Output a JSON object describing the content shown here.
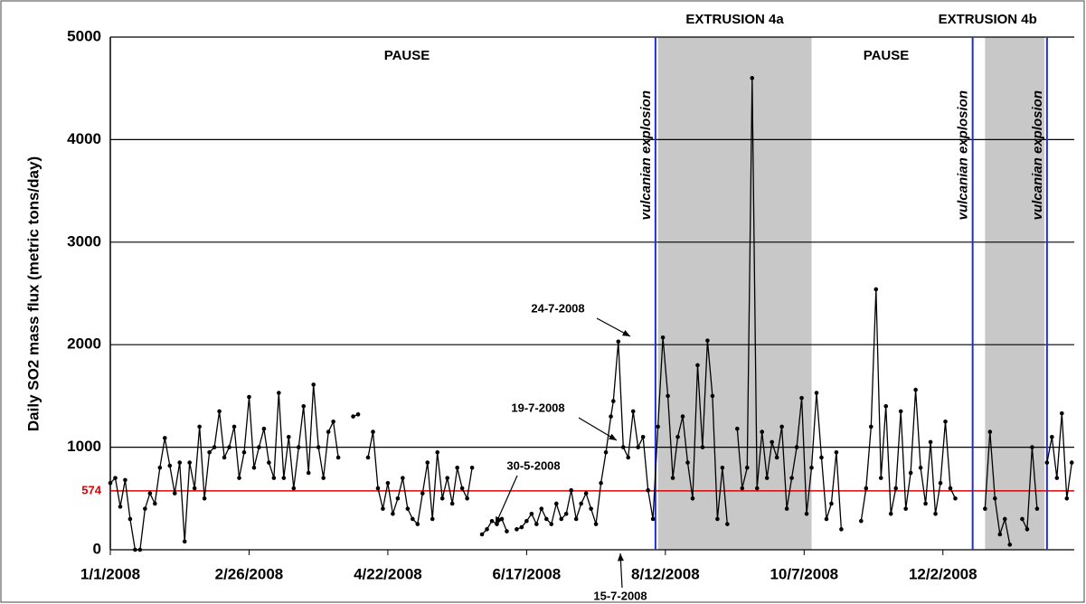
{
  "chart_data": {
    "type": "line",
    "y_label": "Daily SO2 mass flux (metric tons/day)",
    "xlim": [
      "2008-01-01",
      "2009-01-24"
    ],
    "xticks": [
      {
        "value": "2008-01-01",
        "label": "1/1/2008"
      },
      {
        "value": "2008-02-26",
        "label": "2/26/2008"
      },
      {
        "value": "2008-04-22",
        "label": "4/22/2008"
      },
      {
        "value": "2008-06-17",
        "label": "6/17/2008"
      },
      {
        "value": "2008-08-12",
        "label": "8/12/2008"
      },
      {
        "value": "2008-10-07",
        "label": "10/7/2008"
      },
      {
        "value": "2008-12-02",
        "label": "12/2/2008"
      }
    ],
    "ylim": [
      0,
      5000
    ],
    "yticks": [
      0,
      1000,
      2000,
      3000,
      4000,
      5000
    ],
    "grid": true,
    "reference": {
      "value": 574,
      "color": "#e00000"
    },
    "shaded_regions": [
      {
        "label": "EXTRUSION 4a",
        "start": "2008-08-09",
        "end": "2008-10-10",
        "color": "#c8c8c8"
      },
      {
        "label": "EXTRUSION 4b",
        "start": "2008-12-19",
        "end": "2009-01-12",
        "color": "#c8c8c8"
      }
    ],
    "events": [
      {
        "label": "vulcanian explosion",
        "date": "2008-08-08"
      },
      {
        "label": "vulcanian explosion",
        "date": "2008-12-14"
      },
      {
        "label": "vulcanian explosion",
        "date": "2009-01-13"
      }
    ],
    "event_color": "#1f2fd0",
    "pause_labels": [
      "PAUSE",
      "PAUSE"
    ],
    "callouts": [
      "24-7-2008",
      "19-7-2008",
      "30-5-2008",
      "15-7-2008"
    ],
    "series": [
      {
        "name": "SO2",
        "color": "#000000",
        "x": [
          "2008-01-01",
          "2008-01-03",
          "2008-01-05",
          "2008-01-07",
          "2008-01-09",
          "2008-01-11",
          "2008-01-13",
          "2008-01-15",
          "2008-01-17",
          "2008-01-19",
          "2008-01-21",
          "2008-01-23",
          "2008-01-25",
          "2008-01-27",
          "2008-01-29",
          "2008-01-31",
          "2008-02-02",
          "2008-02-04",
          "2008-02-06",
          "2008-02-08",
          "2008-02-10",
          "2008-02-12",
          "2008-02-14",
          "2008-02-16",
          "2008-02-18",
          "2008-02-20",
          "2008-02-22",
          "2008-02-24",
          "2008-02-26",
          "2008-02-28",
          "2008-03-01",
          "2008-03-03",
          "2008-03-05",
          "2008-03-07",
          "2008-03-09",
          "2008-03-11",
          "2008-03-13",
          "2008-03-15",
          "2008-03-17",
          "2008-03-19",
          "2008-03-21",
          "2008-03-23",
          "2008-03-25",
          "2008-03-27",
          "2008-03-29",
          "2008-03-31",
          "2008-04-02",
          "2008-04-05",
          "2008-04-08",
          "2008-04-10",
          "2008-04-12",
          "2008-04-14",
          "2008-04-16",
          "2008-04-18",
          "2008-04-20",
          "2008-04-22",
          "2008-04-24",
          "2008-04-26",
          "2008-04-28",
          "2008-04-30",
          "2008-05-02",
          "2008-05-04",
          "2008-05-06",
          "2008-05-08",
          "2008-05-10",
          "2008-05-12",
          "2008-05-14",
          "2008-05-16",
          "2008-05-18",
          "2008-05-20",
          "2008-05-22",
          "2008-05-24",
          "2008-05-26",
          "2008-05-28",
          "2008-05-30",
          "2008-06-01",
          "2008-06-03",
          "2008-06-05",
          "2008-06-07",
          "2008-06-09",
          "2008-06-11",
          "2008-06-13",
          "2008-06-15",
          "2008-06-17",
          "2008-06-19",
          "2008-06-21",
          "2008-06-23",
          "2008-06-25",
          "2008-06-27",
          "2008-06-29",
          "2008-07-01",
          "2008-07-03",
          "2008-07-05",
          "2008-07-07",
          "2008-07-09",
          "2008-07-11",
          "2008-07-13",
          "2008-07-15",
          "2008-07-17",
          "2008-07-19",
          "2008-07-21",
          "2008-07-22",
          "2008-07-24",
          "2008-07-26",
          "2008-07-28",
          "2008-07-30",
          "2008-08-01",
          "2008-08-03",
          "2008-08-05",
          "2008-08-07",
          "2008-08-09",
          "2008-08-11",
          "2008-08-13",
          "2008-08-15",
          "2008-08-17",
          "2008-08-19",
          "2008-08-21",
          "2008-08-23",
          "2008-08-25",
          "2008-08-27",
          "2008-08-29",
          "2008-08-31",
          "2008-09-02",
          "2008-09-04",
          "2008-09-06",
          "2008-09-08",
          "2008-09-10",
          "2008-09-12",
          "2008-09-14",
          "2008-09-16",
          "2008-09-18",
          "2008-09-20",
          "2008-09-22",
          "2008-09-24",
          "2008-09-26",
          "2008-09-28",
          "2008-09-30",
          "2008-10-02",
          "2008-10-04",
          "2008-10-06",
          "2008-10-08",
          "2008-10-10",
          "2008-10-12",
          "2008-10-14",
          "2008-10-16",
          "2008-10-18",
          "2008-10-20",
          "2008-10-22",
          "2008-10-25",
          "2008-10-30",
          "2008-11-01",
          "2008-11-03",
          "2008-11-05",
          "2008-11-07",
          "2008-11-09",
          "2008-11-11",
          "2008-11-13",
          "2008-11-15",
          "2008-11-17",
          "2008-11-19",
          "2008-11-21",
          "2008-11-23",
          "2008-11-25",
          "2008-11-27",
          "2008-11-29",
          "2008-12-01",
          "2008-12-03",
          "2008-12-05",
          "2008-12-07",
          "2008-12-12",
          "2008-12-19",
          "2008-12-21",
          "2008-12-23",
          "2008-12-25",
          "2008-12-27",
          "2008-12-29",
          "2008-12-31",
          "2009-01-03",
          "2009-01-05",
          "2009-01-07",
          "2009-01-09",
          "2009-01-11",
          "2009-01-13",
          "2009-01-15",
          "2009-01-17",
          "2009-01-19",
          "2009-01-21",
          "2009-01-23"
        ],
        "values": [
          650,
          700,
          420,
          680,
          300,
          0,
          0,
          400,
          550,
          450,
          800,
          1090,
          820,
          550,
          850,
          80,
          850,
          600,
          1200,
          500,
          950,
          1000,
          1350,
          900,
          1000,
          1200,
          700,
          950,
          1490,
          800,
          1000,
          1180,
          850,
          700,
          1530,
          700,
          1100,
          600,
          1000,
          1400,
          750,
          1610,
          1000,
          700,
          1150,
          1250,
          900,
          null,
          1300,
          1320,
          null,
          900,
          1150,
          600,
          400,
          650,
          350,
          500,
          700,
          400,
          300,
          250,
          550,
          850,
          300,
          950,
          500,
          700,
          450,
          800,
          600,
          500,
          800,
          null,
          150,
          200,
          280,
          250,
          300,
          180,
          null,
          200,
          220,
          280,
          350,
          250,
          400,
          300,
          250,
          450,
          300,
          350,
          580,
          300,
          450,
          550,
          400,
          250,
          650,
          950,
          1300,
          1450,
          2030,
          1000,
          900,
          1350,
          1000,
          1100,
          580,
          300,
          1200,
          2070,
          1500,
          700,
          1100,
          1300,
          850,
          500,
          1800,
          1000,
          2040,
          1500,
          300,
          800,
          250,
          null,
          1180,
          600,
          800,
          4600,
          600,
          1150,
          700,
          1050,
          900,
          1200,
          400,
          700,
          1000,
          1480,
          350,
          800,
          1530,
          900,
          300,
          450,
          950,
          200,
          null,
          280,
          600,
          1200,
          2540,
          700,
          1400,
          350,
          600,
          1350,
          400,
          750,
          1560,
          800,
          450,
          1050,
          350,
          650,
          1250,
          600,
          500,
          null,
          400,
          1150,
          500,
          150,
          300,
          50,
          null,
          300,
          200,
          1000,
          400,
          null,
          850,
          1100,
          700,
          1330,
          500,
          850
        ]
      }
    ]
  }
}
